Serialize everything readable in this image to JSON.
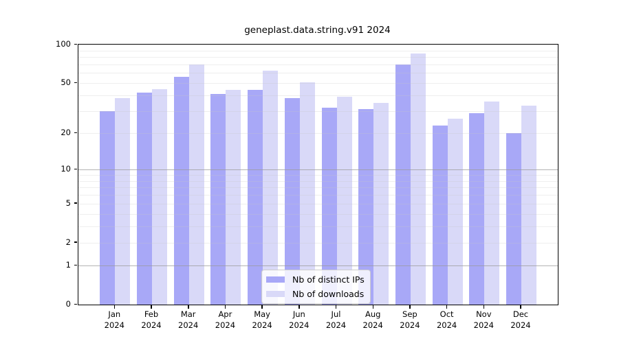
{
  "chart_data": {
    "type": "bar",
    "title": "geneplast.data.string.v91 2024",
    "categories": [
      "Jan",
      "Feb",
      "Mar",
      "Apr",
      "May",
      "Jun",
      "Jul",
      "Aug",
      "Sep",
      "Oct",
      "Nov",
      "Dec"
    ],
    "x_year": "2024",
    "series": [
      {
        "name": "Nb of distinct IPs",
        "color": "#a8a8f7",
        "values": [
          30,
          42,
          56,
          41,
          44,
          38,
          32,
          31,
          70,
          23,
          29,
          20
        ]
      },
      {
        "name": "Nb of downloads",
        "color": "#d9d9f8",
        "values": [
          38,
          45,
          70,
          44,
          63,
          51,
          39,
          35,
          85,
          26,
          36,
          33
        ]
      }
    ],
    "y_axis": {
      "scale": "log1p",
      "min": 0,
      "max": 100,
      "tick_values": [
        0,
        1,
        2,
        5,
        10,
        20,
        50,
        100
      ],
      "major_gridlines": [
        1,
        10
      ],
      "minor_gridlines": [
        2,
        3,
        4,
        5,
        6,
        7,
        8,
        9,
        20,
        30,
        40,
        50,
        60,
        70,
        80,
        90
      ]
    },
    "legend": {
      "position": "lower center"
    },
    "colors": {
      "axis": "#000000",
      "minor_gridline": "#c8c8c8",
      "major_gridline": "#9a9a9a",
      "background": "#ffffff"
    }
  }
}
